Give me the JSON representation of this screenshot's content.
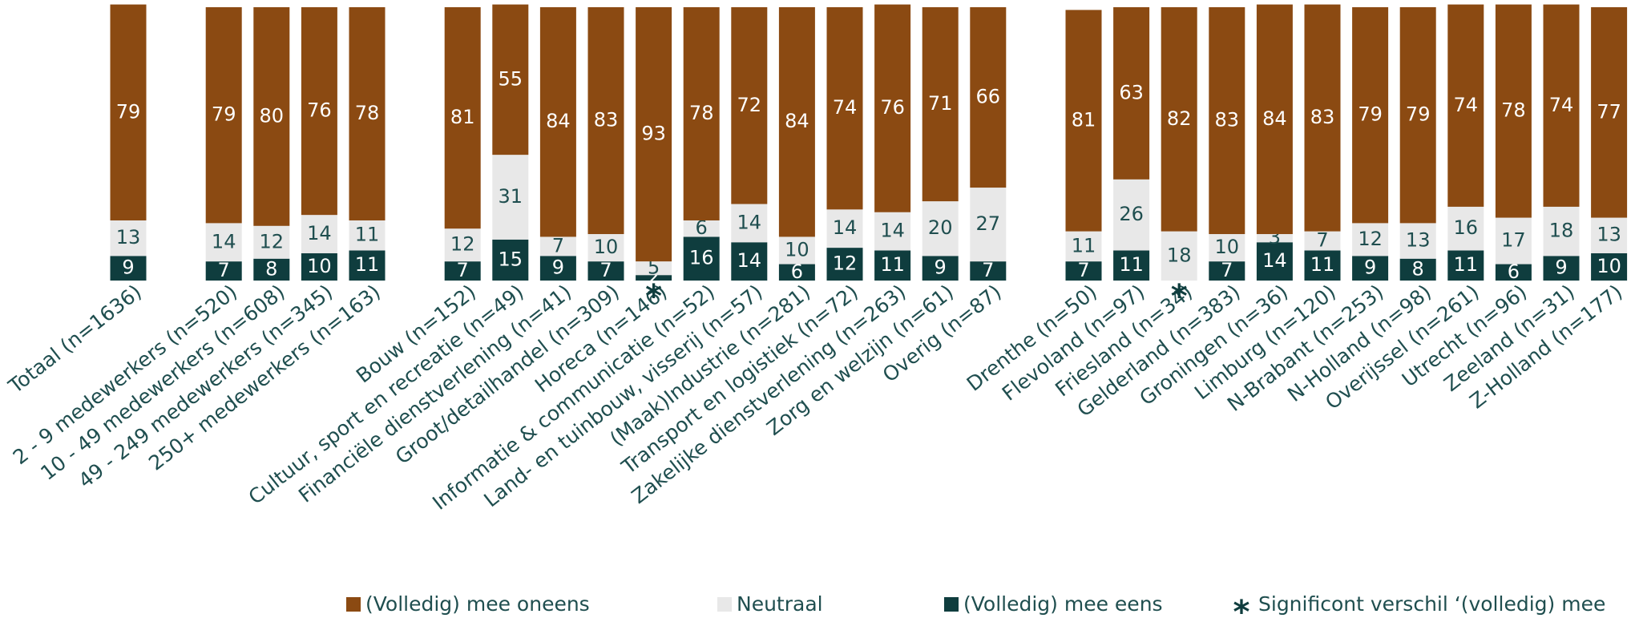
{
  "chart_data": {
    "type": "stacked_bar",
    "categories": [
      "Totaal (n=1636)",
      null,
      "2 - 9 medewerkers (n=520)",
      "10 - 49 medewerkers (n=608)",
      "49 - 249 medewerkers (n=345)",
      "250+ medewerkers (n=163)",
      null,
      "Bouw (n=152)",
      "Cultuur, sport en recreatie (n=49)",
      "Financiële dienstverlening (n=41)",
      "Groot/detailhandel (n=309)",
      "Horeca (n=146)",
      "Informatie & communicatie (n=52)",
      "Land- en tuinbouw, visserij (n=57)",
      "(Maak)Industrie (n=281)",
      "Transport en logistiek (n=72)",
      "Zakelijke dienstverlening (n=263)",
      "Zorg en welzijn (n=61)",
      "Overig (n=87)",
      null,
      "Drenthe (n=50)",
      "Flevoland (n=97)",
      "Friesland (n=34)",
      "Gelderland (n=383)",
      "Groningen (n=36)",
      "Limburg (n=120)",
      "N-Brabant (n=253)",
      "N-Holland (n=98)",
      "Overijssel (n=261)",
      "Utrecht (n=96)",
      "Zeeland (n=31)",
      "Z-Holland (n=177)"
    ],
    "series": [
      {
        "name": "(Volledig) mee eens",
        "color": "#0f3d3e",
        "label_color": "#ffffff",
        "values": [
          9,
          null,
          7,
          8,
          10,
          11,
          null,
          7,
          15,
          9,
          7,
          2,
          16,
          14,
          6,
          12,
          11,
          9,
          7,
          null,
          7,
          11,
          0,
          7,
          14,
          11,
          9,
          8,
          11,
          6,
          9,
          10
        ]
      },
      {
        "name": "Neutraal",
        "color": "#e8e8e8",
        "label_color": "#1f4e4f",
        "values": [
          13,
          null,
          14,
          12,
          14,
          11,
          null,
          12,
          31,
          7,
          10,
          5,
          6,
          14,
          10,
          14,
          14,
          20,
          27,
          null,
          11,
          26,
          18,
          10,
          3,
          7,
          12,
          13,
          16,
          17,
          18,
          13
        ]
      },
      {
        "name": "(Volledig) mee oneens",
        "color": "#8b4a12",
        "label_color": "#ffffff",
        "values": [
          79,
          null,
          79,
          80,
          76,
          78,
          null,
          81,
          55,
          84,
          83,
          93,
          78,
          72,
          84,
          74,
          76,
          71,
          66,
          null,
          81,
          63,
          82,
          83,
          84,
          83,
          79,
          79,
          74,
          78,
          74,
          77
        ]
      }
    ],
    "significant": [
      false,
      false,
      false,
      false,
      false,
      false,
      false,
      false,
      false,
      false,
      false,
      true,
      false,
      false,
      false,
      false,
      false,
      false,
      false,
      false,
      false,
      false,
      true,
      false,
      false,
      false,
      false,
      false,
      false,
      false,
      false,
      false
    ],
    "significant_legend": "Significont verschil ‘(volledig) mee",
    "ylim": [
      0,
      100
    ]
  }
}
